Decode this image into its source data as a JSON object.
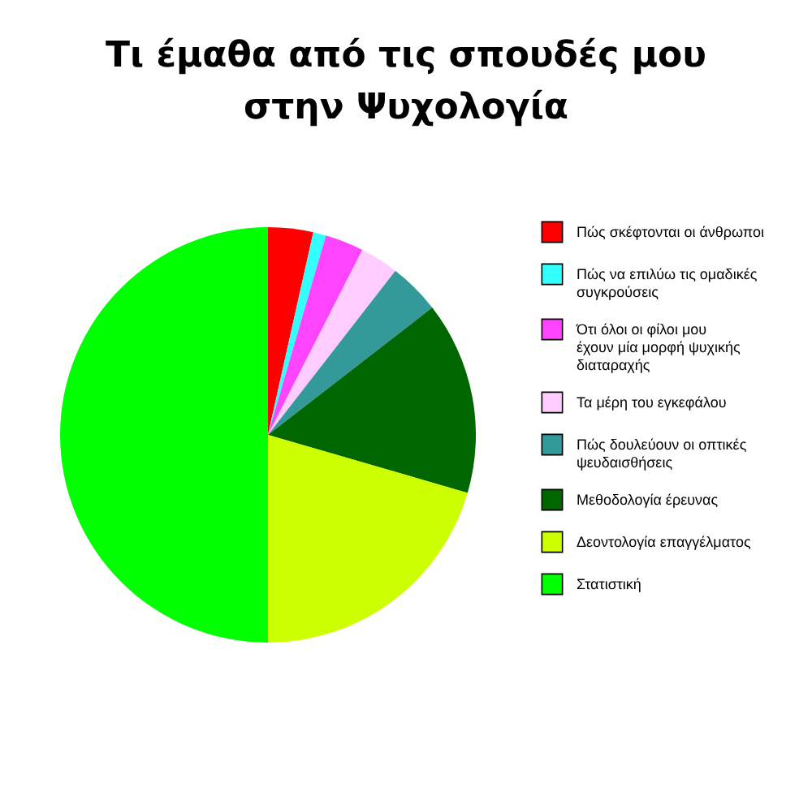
{
  "chart_data": {
    "type": "pie",
    "title": "Τι έμαθα από τις σπουδές μου στην Ψυχολογία",
    "categories": [
      "Πώς σκέφτονται οι άνθρωποι",
      "Πώς να επιλύω τις ομαδικές συγκρούσεις",
      "Ότι όλοι οι φίλοι μου έχουν μία μορφή ψυχικής διαταραχής",
      "Τα μέρη του εγκεφάλου",
      "Πώς δουλεύουν οι οπτικές ψευδαισθήσεις",
      "Μεθοδολογία έρευνας",
      "Δεοντολογία επαγγέλματος",
      "Στατιστική"
    ],
    "values": [
      3.5,
      1,
      3,
      3,
      4,
      15,
      20.5,
      50
    ],
    "colors": [
      "#ff0000",
      "#33ffff",
      "#ff44ff",
      "#ffccff",
      "#339999",
      "#006600",
      "#ccff00",
      "#00ff00"
    ],
    "legend": "right"
  }
}
